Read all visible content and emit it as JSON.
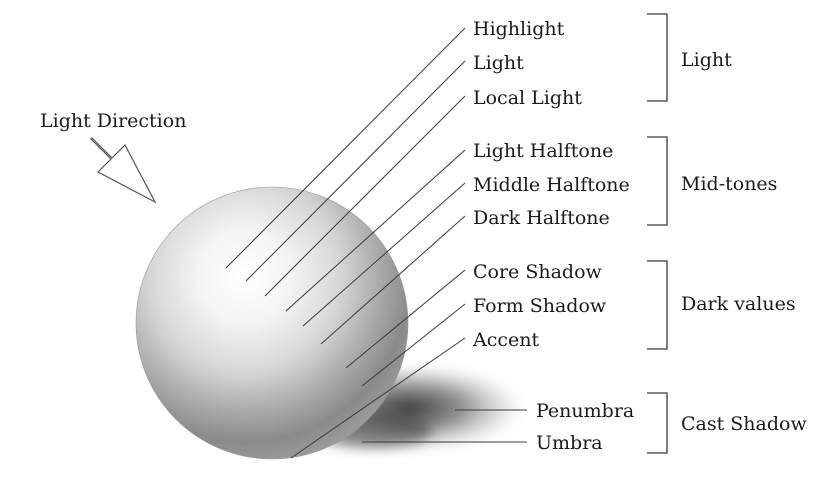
{
  "light_direction": "Light Direction",
  "labels": {
    "highlight": "Highlight",
    "light": "Light",
    "local_light": "Local Light",
    "light_halftone": "Light Halftone",
    "middle_halftone": "Middle Halftone",
    "dark_halftone": "Dark Halftone",
    "core_shadow": "Core Shadow",
    "form_shadow": "Form Shadow",
    "accent": "Accent",
    "penumbra": "Penumbra",
    "umbra": "Umbra"
  },
  "groups": {
    "light": "Light",
    "mid_tones": "Mid-tones",
    "dark_values": "Dark values",
    "cast_shadow": "Cast Shadow"
  },
  "colors": {
    "sphere_light": "#ffffff",
    "sphere_dark": "#6e6e6e",
    "shadow": "#2e2e2e",
    "line": "#3a3a3a"
  }
}
